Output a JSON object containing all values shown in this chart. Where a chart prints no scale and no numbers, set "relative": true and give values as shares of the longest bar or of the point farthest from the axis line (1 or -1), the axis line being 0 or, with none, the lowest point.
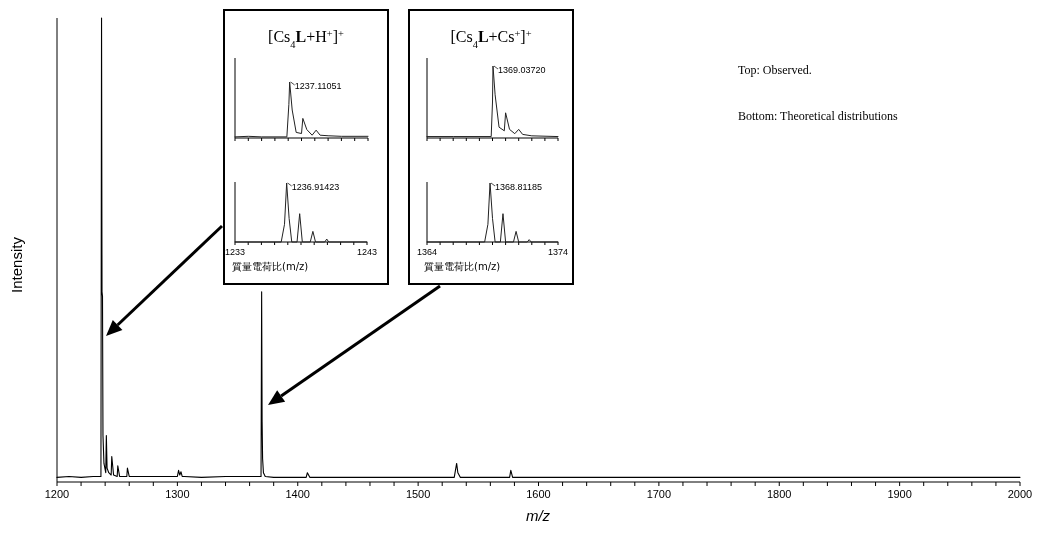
{
  "chart_data": [
    {
      "type": "line",
      "relative": true,
      "xlabel": "m/z",
      "ylabel": "Intensity",
      "color": "#000000",
      "xlim": [
        1200,
        2000
      ],
      "xticks": [
        1200,
        {
          "value": 1220,
          "label": null
        },
        {
          "value": 1240,
          "label": null
        },
        {
          "value": 1260,
          "label": null
        },
        {
          "value": 1280,
          "label": null
        },
        1300,
        {
          "value": 1320,
          "label": null
        },
        {
          "value": 1340,
          "label": null
        },
        {
          "value": 1360,
          "label": null
        },
        {
          "value": 1380,
          "label": null
        },
        1400,
        {
          "value": 1420,
          "label": null
        },
        {
          "value": 1440,
          "label": null
        },
        {
          "value": 1460,
          "label": null
        },
        {
          "value": 1480,
          "label": null
        },
        1500,
        {
          "value": 1520,
          "label": null
        },
        {
          "value": 1540,
          "label": null
        },
        {
          "value": 1560,
          "label": null
        },
        {
          "value": 1580,
          "label": null
        },
        1600,
        {
          "value": 1620,
          "label": null
        },
        {
          "value": 1640,
          "label": null
        },
        {
          "value": 1660,
          "label": null
        },
        {
          "value": 1680,
          "label": null
        },
        1700,
        {
          "value": 1720,
          "label": null
        },
        {
          "value": 1740,
          "label": null
        },
        {
          "value": 1760,
          "label": null
        },
        {
          "value": 1780,
          "label": null
        },
        1800,
        {
          "value": 1820,
          "label": null
        },
        {
          "value": 1840,
          "label": null
        },
        {
          "value": 1860,
          "label": null
        },
        {
          "value": 1880,
          "label": null
        },
        1900,
        {
          "value": 1920,
          "label": null
        },
        {
          "value": 1940,
          "label": null
        },
        {
          "value": 1960,
          "label": null
        },
        {
          "value": 1980,
          "label": null
        },
        2000
      ],
      "x": [
        1200,
        1210,
        1220,
        1230,
        1236.5,
        1237,
        1237.4,
        1237.8,
        1238.2,
        1239,
        1240.5,
        1241,
        1241.6,
        1243,
        1245,
        1245.5,
        1247,
        1250,
        1250.5,
        1252,
        1258,
        1258.5,
        1260,
        1280,
        1300,
        1301,
        1302,
        1303,
        1304,
        1306,
        1320,
        1340,
        1360,
        1369.5,
        1370,
        1370.4,
        1370.8,
        1371.5,
        1373,
        1380,
        1400,
        1407,
        1408,
        1410,
        1450,
        1500,
        1530,
        1532,
        1533,
        1535,
        1550,
        1576,
        1577,
        1578.5,
        1600,
        1700,
        1800,
        1900,
        2000
      ],
      "values": [
        0.01,
        0.012,
        0.01,
        0.012,
        0.012,
        1.0,
        0.41,
        0.4,
        0.1,
        0.04,
        0.02,
        0.1,
        0.03,
        0.02,
        0.015,
        0.055,
        0.015,
        0.012,
        0.035,
        0.012,
        0.012,
        0.03,
        0.012,
        0.012,
        0.012,
        0.025,
        0.015,
        0.022,
        0.012,
        0.012,
        0.01,
        0.012,
        0.012,
        0.012,
        0.41,
        0.13,
        0.05,
        0.02,
        0.012,
        0.01,
        0.01,
        0.01,
        0.02,
        0.01,
        0.01,
        0.01,
        0.01,
        0.04,
        0.02,
        0.01,
        0.01,
        0.01,
        0.025,
        0.01,
        0.01,
        0.01,
        0.01,
        0.01,
        0.01
      ],
      "annotations": [
        "Top: Observed.",
        "Bottom: Theoretical distributions"
      ]
    },
    {
      "type": "line",
      "relative": true,
      "title": "[Cs$_{4}$**L**+H$^{+}$]$^{+}$",
      "color": "#222222",
      "tick_labels": false,
      "xlim": [
        1233,
        1243
      ],
      "xticks": [
        1233,
        1234,
        1235,
        1236,
        1237,
        1238,
        1239,
        1240,
        1241,
        1242,
        1243
      ],
      "x": [
        1233,
        1234,
        1235,
        1236.9,
        1237.05,
        1237.11051,
        1237.3,
        1237.6,
        1238,
        1238.1,
        1238.4,
        1238.8,
        1239.1,
        1239.4,
        1240,
        1241,
        1243
      ],
      "values": [
        0.02,
        0.03,
        0.02,
        0.02,
        0.6,
        1.0,
        0.5,
        0.1,
        0.08,
        0.35,
        0.15,
        0.05,
        0.14,
        0.05,
        0.04,
        0.03,
        0.03
      ],
      "annotations": [
        {
          "text": "1237.11051",
          "x": 1237.11051,
          "y": 1.0
        }
      ]
    },
    {
      "type": "line",
      "relative": true,
      "xlabel": "質量電荷比(m/z)",
      "color": "#222222",
      "tick_labels": "x",
      "xlim": [
        1233,
        1243
      ],
      "xticks": [
        1233,
        {
          "value": 1234,
          "label": null
        },
        {
          "value": 1235,
          "label": null
        },
        {
          "value": 1236,
          "label": null
        },
        {
          "value": 1237,
          "label": null
        },
        {
          "value": 1238,
          "label": null
        },
        {
          "value": 1239,
          "label": null
        },
        {
          "value": 1240,
          "label": null
        },
        {
          "value": 1241,
          "label": null
        },
        {
          "value": 1242,
          "label": null
        },
        1243
      ],
      "x": [
        1233,
        1236.5,
        1236.75,
        1236.91423,
        1237.1,
        1237.3,
        1237.7,
        1237.9,
        1238.1,
        1238.7,
        1238.9,
        1239.1,
        1239.8,
        1239.95,
        1240.1,
        1243
      ],
      "values": [
        0,
        0,
        0.3,
        1.0,
        0.4,
        0,
        0,
        0.48,
        0,
        0,
        0.18,
        0,
        0,
        0.05,
        0,
        0
      ],
      "annotations": [
        {
          "text": "1236.91423",
          "x": 1236.91423,
          "y": 1.0
        }
      ]
    },
    {
      "type": "line",
      "relative": true,
      "title": "[Cs$_{4}$**L**+Cs$^{+}$]$^{+}$",
      "color": "#222222",
      "tick_labels": false,
      "xlim": [
        1364,
        1374
      ],
      "xticks": [
        1364,
        1365,
        1366,
        1367,
        1368,
        1369,
        1370,
        1371,
        1372,
        1373,
        1374
      ],
      "x": [
        1364,
        1366,
        1368.9,
        1369.0,
        1369.0372,
        1369.2,
        1369.5,
        1369.9,
        1370.0,
        1370.3,
        1370.7,
        1371.0,
        1371.3,
        1372,
        1374
      ],
      "values": [
        0.02,
        0.02,
        0.02,
        0.5,
        1.0,
        0.6,
        0.15,
        0.1,
        0.35,
        0.12,
        0.06,
        0.12,
        0.05,
        0.03,
        0.02
      ],
      "annotations": [
        {
          "text": "1369.03720",
          "x": 1369.0372,
          "y": 1.0
        }
      ]
    },
    {
      "type": "line",
      "relative": true,
      "xlabel": "質量電荷比(m/z)",
      "color": "#222222",
      "tick_labels": "x",
      "xlim": [
        1364,
        1374
      ],
      "xticks": [
        1364,
        {
          "value": 1365,
          "label": null
        },
        {
          "value": 1366,
          "label": null
        },
        {
          "value": 1367,
          "label": null
        },
        {
          "value": 1368,
          "label": null
        },
        {
          "value": 1369,
          "label": null
        },
        {
          "value": 1370,
          "label": null
        },
        {
          "value": 1371,
          "label": null
        },
        {
          "value": 1372,
          "label": null
        },
        {
          "value": 1373,
          "label": null
        },
        1374
      ],
      "x": [
        1364,
        1368.4,
        1368.65,
        1368.81185,
        1369.0,
        1369.2,
        1369.6,
        1369.8,
        1370.0,
        1370.6,
        1370.8,
        1371.0,
        1371.65,
        1371.8,
        1371.95,
        1374
      ],
      "values": [
        0,
        0,
        0.3,
        1.0,
        0.4,
        0,
        0,
        0.48,
        0,
        0,
        0.18,
        0,
        0,
        0.04,
        0,
        0
      ],
      "annotations": [
        {
          "text": "1368.81185",
          "x": 1368.81185,
          "y": 1.0
        }
      ]
    }
  ]
}
